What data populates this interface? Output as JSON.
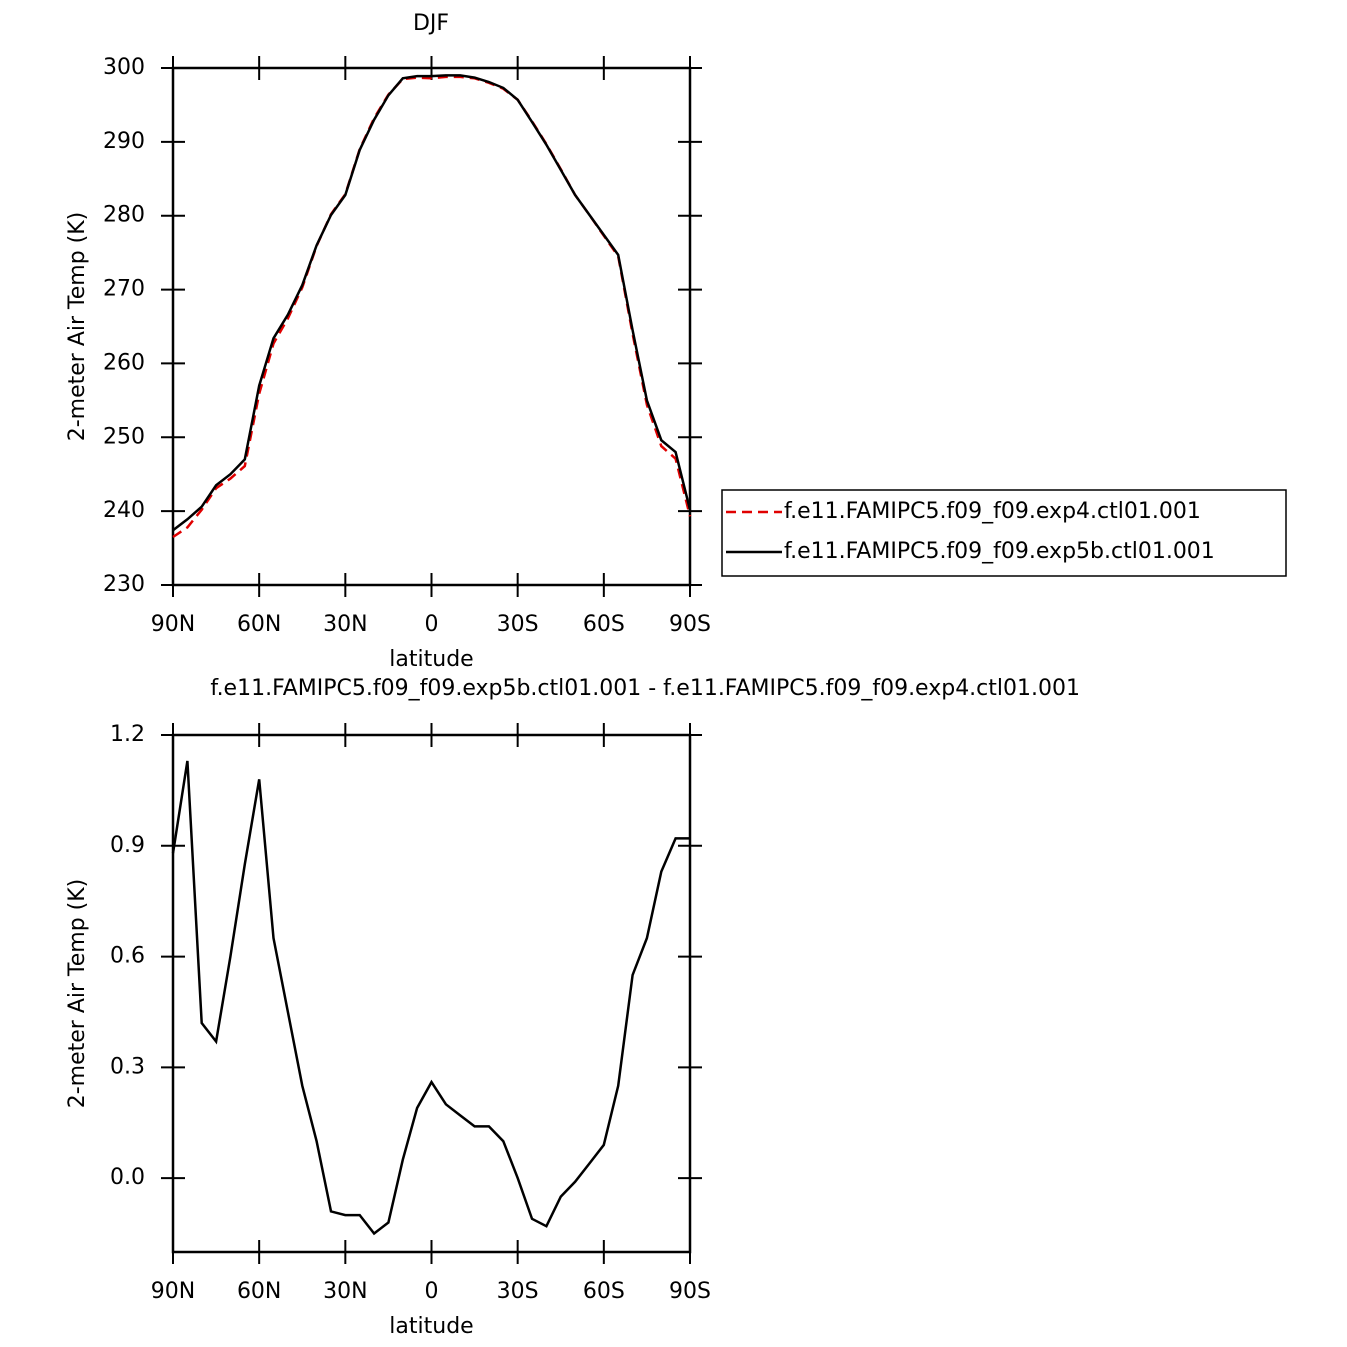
{
  "chart_data": [
    {
      "type": "line",
      "title": "DJF",
      "xlabel": "latitude",
      "ylabel": "2-meter Air Temp (K)",
      "x": [
        90,
        85,
        80,
        75,
        70,
        65,
        60,
        55,
        50,
        45,
        40,
        35,
        30,
        25,
        20,
        15,
        10,
        5,
        0,
        -5,
        -10,
        -15,
        -20,
        -25,
        -30,
        -35,
        -40,
        -45,
        -50,
        -55,
        -60,
        -65,
        -70,
        -75,
        -80,
        -85,
        -90
      ],
      "series": [
        {
          "name": "f.e11.FAMIPC5.f09_f09.exp4.ctl01.001",
          "color": "#e00000",
          "linestyle": "dashed",
          "values": [
            236.5,
            237.8,
            240.2,
            243.1,
            244.4,
            246.1,
            255.9,
            262.7,
            266.1,
            270.3,
            275.9,
            280.2,
            282.9,
            289.0,
            293.2,
            296.4,
            298.5,
            298.7,
            298.6,
            298.8,
            298.8,
            298.6,
            298.0,
            297.2,
            295.7,
            292.8,
            289.7,
            286.3,
            282.8,
            280.1,
            277.3,
            274.5,
            264.0,
            254.4,
            248.8,
            247.1,
            239.3
          ]
        },
        {
          "name": "f.e11.FAMIPC5.f09_f09.exp5b.ctl01.001",
          "color": "#000000",
          "linestyle": "solid",
          "values": [
            237.4,
            238.9,
            240.6,
            243.5,
            245.0,
            247.0,
            257.0,
            263.4,
            266.6,
            270.6,
            276.0,
            280.1,
            282.8,
            288.9,
            293.0,
            296.3,
            298.6,
            298.9,
            298.9,
            299.0,
            299.0,
            298.7,
            298.1,
            297.3,
            295.7,
            292.7,
            289.6,
            286.2,
            282.8,
            280.1,
            277.4,
            274.7,
            264.5,
            255.0,
            249.6,
            248.0,
            240.2
          ]
        }
      ],
      "xlim": [
        90,
        -90
      ],
      "xticks": [
        {
          "value": 90,
          "label": "90N"
        },
        {
          "value": 60,
          "label": "60N"
        },
        {
          "value": 30,
          "label": "30N"
        },
        0,
        {
          "value": -30,
          "label": "30S"
        },
        {
          "value": -60,
          "label": "60S"
        },
        {
          "value": -90,
          "label": "90S"
        }
      ],
      "ylim": [
        230,
        300
      ],
      "yticks": [
        230,
        240,
        250,
        260,
        270,
        280,
        290,
        300
      ],
      "legend": "right"
    },
    {
      "type": "line",
      "title": "f.e11.FAMIPC5.f09_f09.exp5b.ctl01.001 - f.e11.FAMIPC5.f09_f09.exp4.ctl01.001",
      "xlabel": "latitude",
      "ylabel": "2-meter Air Temp (K)",
      "x": [
        90,
        85,
        80,
        75,
        70,
        65,
        60,
        55,
        50,
        45,
        40,
        35,
        30,
        25,
        20,
        15,
        10,
        5,
        0,
        -5,
        -10,
        -15,
        -20,
        -25,
        -30,
        -35,
        -40,
        -45,
        -50,
        -55,
        -60,
        -65,
        -70,
        -75,
        -80,
        -85,
        -90
      ],
      "values": [
        0.88,
        1.13,
        0.42,
        0.37,
        0.6,
        0.85,
        1.08,
        0.65,
        0.45,
        0.25,
        0.1,
        -0.09,
        -0.1,
        -0.1,
        -0.15,
        -0.12,
        0.05,
        0.19,
        0.26,
        0.2,
        0.17,
        0.14,
        0.14,
        0.1,
        0.0,
        -0.11,
        -0.13,
        -0.05,
        -0.01,
        0.04,
        0.09,
        0.25,
        0.55,
        0.65,
        0.83,
        0.92,
        0.92
      ],
      "color": "#000000",
      "xlim": [
        90,
        -90
      ],
      "xticks": [
        {
          "value": 90,
          "label": "90N"
        },
        {
          "value": 60,
          "label": "60N"
        },
        {
          "value": 30,
          "label": "30N"
        },
        0,
        {
          "value": -30,
          "label": "30S"
        },
        {
          "value": -60,
          "label": "60S"
        },
        {
          "value": -90,
          "label": "90S"
        }
      ],
      "ylim": [
        -0.2,
        1.2
      ],
      "yticks": [
        {
          "value": 0,
          "label": "0.0"
        },
        0.3,
        0.6,
        0.9,
        1.2
      ]
    }
  ]
}
